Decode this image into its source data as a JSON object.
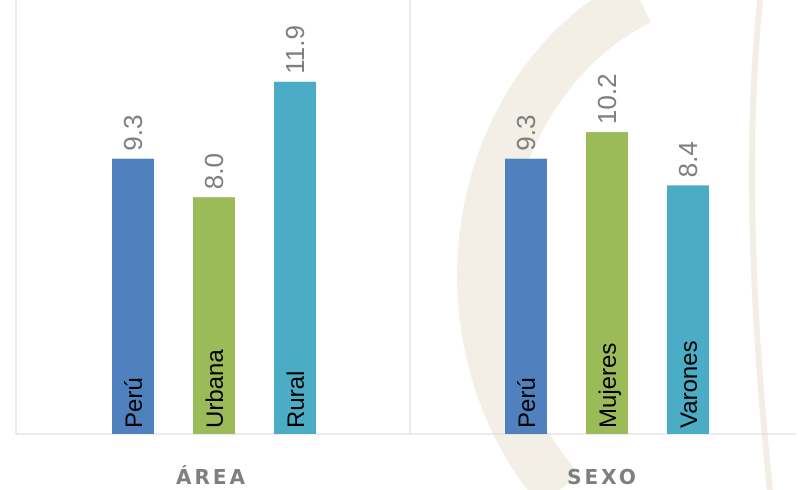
{
  "chart_data": {
    "type": "bar",
    "y_range": [
      0,
      15
    ],
    "grid": false,
    "legend": "none",
    "value_label_color": "#7f7f7f",
    "category_label_color": "#000000",
    "group_label_color": "#7f7f7f",
    "axis_color": "#d9d9d9",
    "groups": [
      {
        "label": "ÁREA",
        "bars": [
          {
            "category": "Perú",
            "value": 9.3,
            "value_label": "9.3",
            "color": "#4e81bd"
          },
          {
            "category": "Urbana",
            "value": 8.0,
            "value_label": "8.0",
            "color": "#9bbb59"
          },
          {
            "category": "Rural",
            "value": 11.9,
            "value_label": "11.9",
            "color": "#4bacc6"
          }
        ]
      },
      {
        "label": "SEXO",
        "bars": [
          {
            "category": "Perú",
            "value": 9.3,
            "value_label": "9.3",
            "color": "#4e81bd"
          },
          {
            "category": "Mujeres",
            "value": 10.2,
            "value_label": "10.2",
            "color": "#9bbb59"
          },
          {
            "category": "Varones",
            "value": 8.4,
            "value_label": "8.4",
            "color": "#4bacc6"
          }
        ]
      }
    ]
  }
}
